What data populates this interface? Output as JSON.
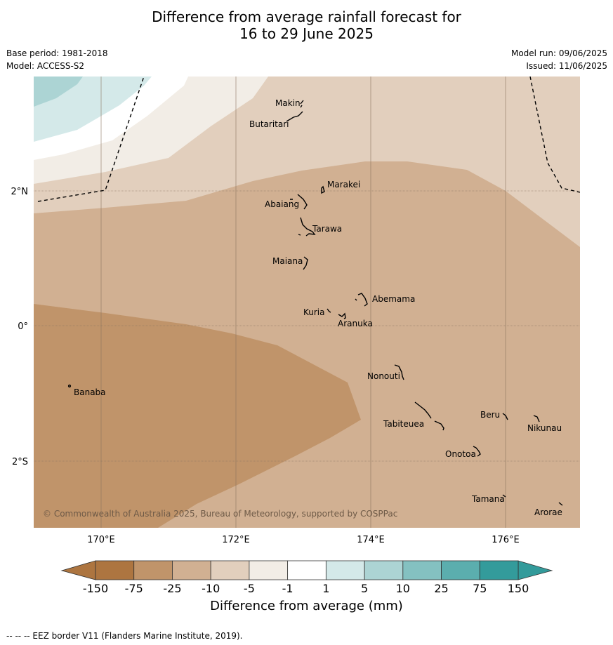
{
  "title_line1": "Difference from average rainfall forecast for",
  "title_line2": "16 to 29 June 2025",
  "base_period": "Base period: 1981-2018",
  "model": "Model: ACCESS-S2",
  "model_run": "Model run: 09/06/2025",
  "issued": "Issued: 11/06/2025",
  "lat_labels": [
    "2°N",
    "0°",
    "2°S"
  ],
  "lon_labels": [
    "170°E",
    "172°E",
    "174°E",
    "176°E"
  ],
  "places": [
    "Makin",
    "Butaritari",
    "Marakei",
    "Abaiang",
    "Tarawa",
    "Maiana",
    "Abemama",
    "Kuria",
    "Aranuka",
    "Banaba",
    "Nonouti",
    "Beru",
    "Nikunau",
    "Tabiteuea",
    "Onotoa",
    "Tamana",
    "Arorae"
  ],
  "copyright": "© Commonwealth of Australia 2025, Bureau of Meteorology, supported by COSPPac",
  "colorbar": {
    "title": "Difference from average (mm)",
    "tick_labels": [
      "-150",
      "-75",
      "-25",
      "-10",
      "-5",
      "-1",
      "1",
      "5",
      "10",
      "25",
      "75",
      "150"
    ],
    "colors": [
      "#ad7540",
      "#c0946a",
      "#d1b092",
      "#e2cfbd",
      "#f2ede6",
      "#ffffff",
      "#d4e9e9",
      "#acd4d4",
      "#84c1c1",
      "#5baeae",
      "#339b9b"
    ],
    "under_color": "#ad7540",
    "over_color": "#339b9b"
  },
  "footnote": "--  --  -- EEZ border V11 (Flanders Marine Institute, 2019)."
}
